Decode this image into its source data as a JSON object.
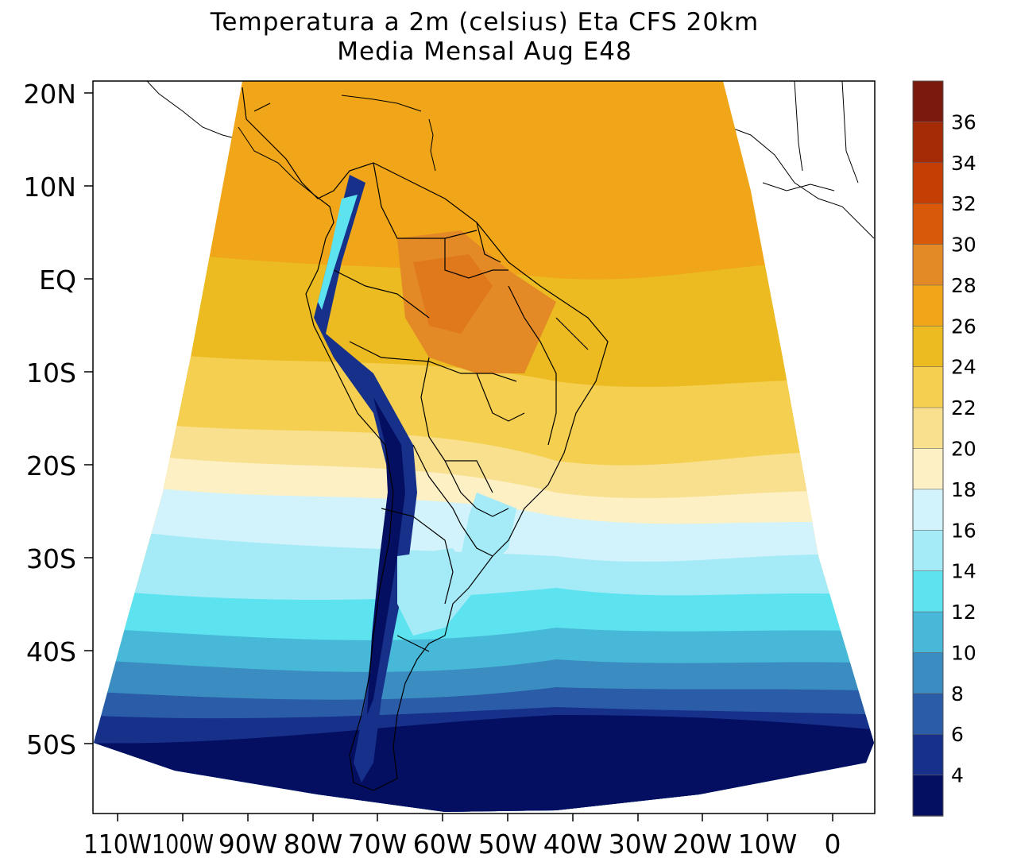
{
  "title_line1": "Temperatura a 2m (celsius) Eta CFS 20km",
  "title_line2": "Media Mensal Aug  E48",
  "lat_labels": [
    "20N",
    "10N",
    "EQ",
    "10S",
    "20S",
    "30S",
    "40S",
    "50S"
  ],
  "lon_labels": [
    "110W",
    "100W",
    "90W",
    "80W",
    "70W",
    "60W",
    "50W",
    "40W",
    "30W",
    "20W",
    "10W",
    "0"
  ],
  "colorbar": {
    "labels": [
      "36",
      "34",
      "32",
      "30",
      "28",
      "26",
      "24",
      "22",
      "20",
      "18",
      "16",
      "14",
      "12",
      "10",
      "8",
      "6",
      "4"
    ],
    "colors": [
      "#7a1a0c",
      "#a52a06",
      "#c53e03",
      "#d8590a",
      "#e38a26",
      "#f0a618",
      "#ebbb21",
      "#f5cf4f",
      "#f8e08e",
      "#fcf0c4",
      "#d2f3fb",
      "#a5ebf7",
      "#5ce3ef",
      "#47b8d7",
      "#3a8cc1",
      "#2a5ca8",
      "#17308a",
      "#040f62"
    ]
  },
  "legend_colors": {
    "land_warm": "#e38a26",
    "land_cold": "#040f62",
    "andes": "#17308a"
  }
}
